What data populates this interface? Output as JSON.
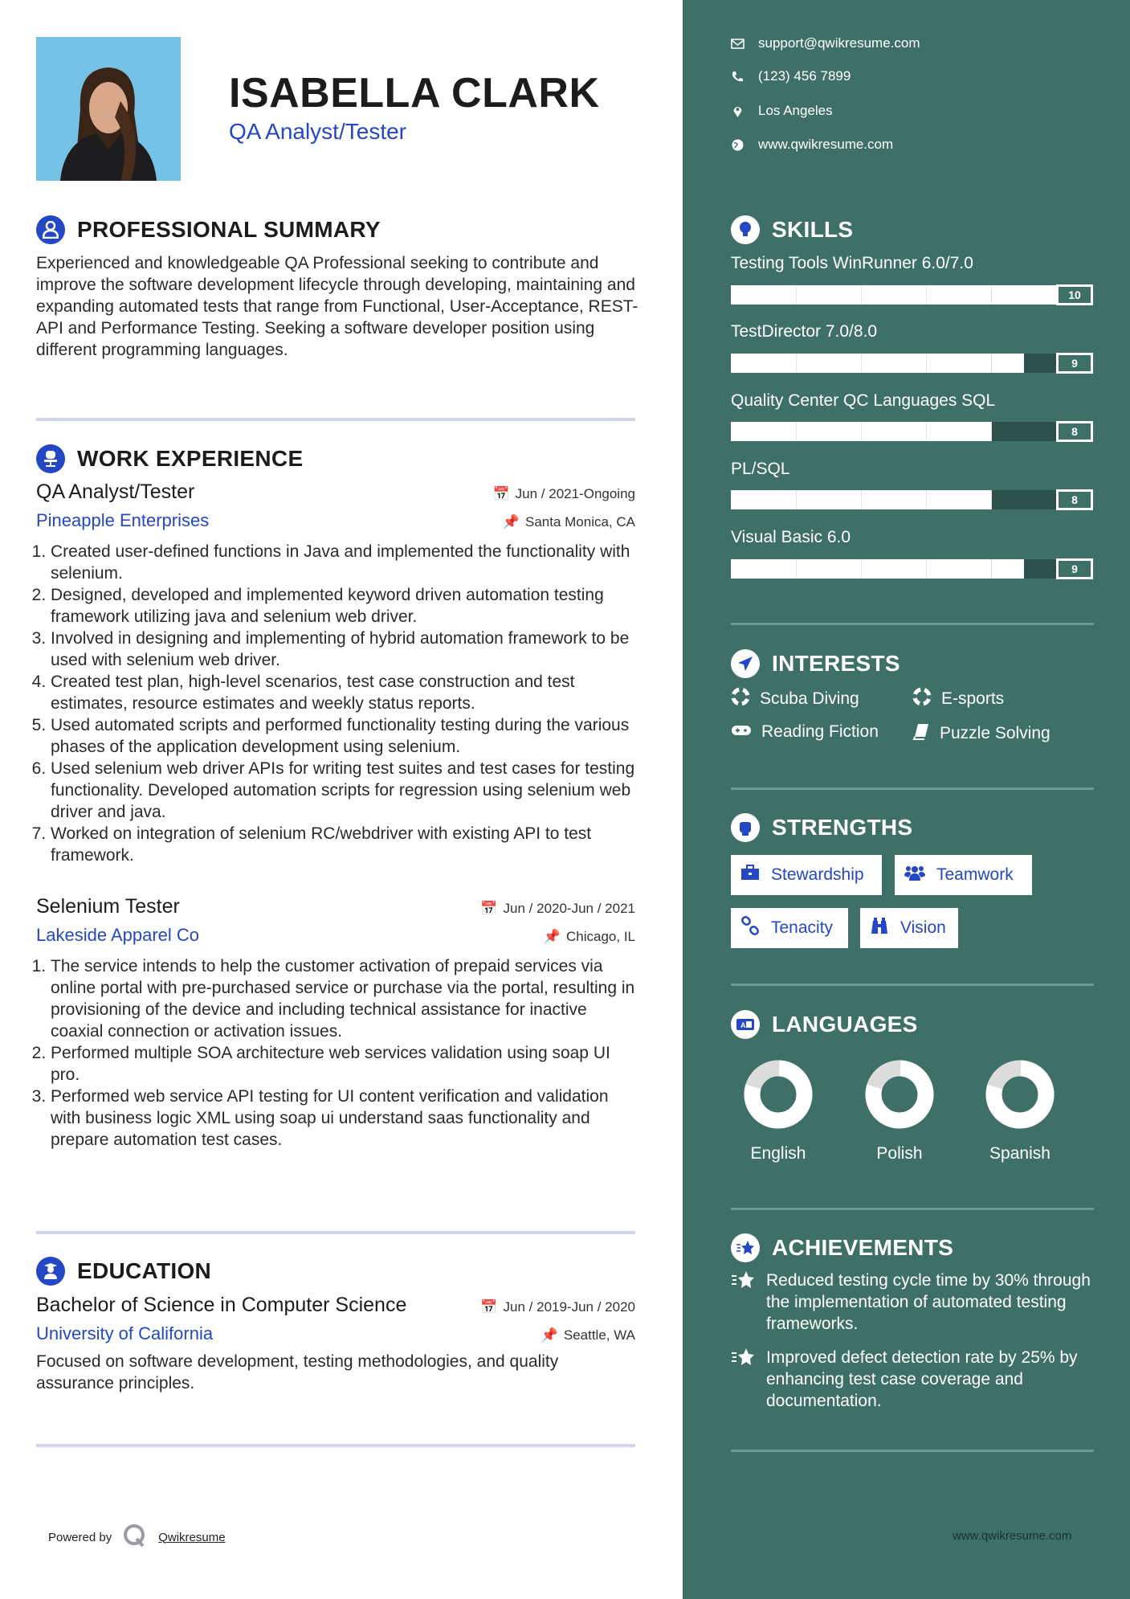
{
  "header": {
    "name": "ISABELLA CLARK",
    "title": "QA Analyst/Tester"
  },
  "summary": {
    "heading": "PROFESSIONAL SUMMARY",
    "text": "Experienced and knowledgeable QA Professional seeking to contribute and improve the software development lifecycle through developing, maintaining and expanding automated tests that range from Functional, User-Acceptance, REST-API and Performance Testing. Seeking a software developer position using different programming languages."
  },
  "experience": {
    "heading": "WORK EXPERIENCE",
    "jobs": [
      {
        "title": "QA Analyst/Tester",
        "company": "Pineapple Enterprises",
        "date": "Jun / 2021-Ongoing",
        "location": "Santa Monica, CA",
        "bullets": [
          "Created user-defined functions in Java and implemented the functionality with selenium.",
          "Designed, developed and implemented keyword driven automation testing framework utilizing java and selenium web driver.",
          "Involved in designing and implementing of hybrid automation framework to be used with selenium web driver.",
          "Created test plan, high-level scenarios, test case construction and test estimates, resource estimates and weekly status reports.",
          "Used automated scripts and performed functionality testing during the various phases of the application development using selenium.",
          "Used selenium web driver APIs for writing test suites and test cases for testing functionality. Developed automation scripts for regression using selenium web driver and java.",
          "Worked on integration of selenium RC/webdriver with existing API to test framework."
        ]
      },
      {
        "title": "Selenium Tester",
        "company": "Lakeside Apparel Co",
        "date": "Jun / 2020-Jun / 2021",
        "location": "Chicago, IL",
        "bullets": [
          "The service intends to help the customer activation of prepaid services via online portal with pre-purchased service or purchase via the portal, resulting in provisioning of the device and including technical assistance for inactive coaxial connection or activation issues.",
          "Performed multiple SOA architecture web services validation using soap UI pro.",
          "Performed web service API testing for UI content verification and validation with business logic XML using soap ui understand saas functionality and prepare automation test cases."
        ]
      }
    ]
  },
  "education": {
    "heading": "EDUCATION",
    "degree": "Bachelor of Science in Computer Science",
    "school": "University of California",
    "date": "Jun / 2019-Jun / 2020",
    "location": "Seattle, WA",
    "text": "Focused on software development, testing methodologies, and quality assurance principles."
  },
  "footer": {
    "powered_by": "Powered by",
    "brand": "Qwikresume",
    "site": "www.qwikresume.com"
  },
  "contact": {
    "email": "support@qwikresume.com",
    "phone": "(123) 456 7899",
    "location": "Los Angeles",
    "website": "www.qwikresume.com"
  },
  "skills": {
    "heading": "SKILLS",
    "max": 10,
    "items": [
      {
        "name": "Testing Tools WinRunner 6.0/7.0",
        "level": 10
      },
      {
        "name": "TestDirector 7.0/8.0",
        "level": 9
      },
      {
        "name": "Quality Center QC Languages SQL",
        "level": 8
      },
      {
        "name": "PL/SQL",
        "level": 8
      },
      {
        "name": "Visual Basic 6.0",
        "level": 9
      }
    ]
  },
  "interests": {
    "heading": "INTERESTS",
    "items": [
      {
        "label": "Scuba Diving",
        "icon": "life-ring-icon"
      },
      {
        "label": "E-sports",
        "icon": "life-ring-icon"
      },
      {
        "label": "Reading Fiction",
        "icon": "gamepad-icon"
      },
      {
        "label": "Puzzle Solving",
        "icon": "book-icon"
      }
    ]
  },
  "strengths": {
    "heading": "STRENGTHS",
    "items": [
      {
        "label": "Stewardship",
        "icon": "briefcase-icon"
      },
      {
        "label": "Teamwork",
        "icon": "users-icon"
      },
      {
        "label": "Tenacity",
        "icon": "link-icon"
      },
      {
        "label": "Vision",
        "icon": "binoculars-icon"
      }
    ]
  },
  "languages": {
    "heading": "LANGUAGES",
    "items": [
      {
        "name": "English",
        "level_percent": 80
      },
      {
        "name": "Polish",
        "level_percent": 80
      },
      {
        "name": "Spanish",
        "level_percent": 80
      }
    ]
  },
  "achievements": {
    "heading": "ACHIEVEMENTS",
    "items": [
      "Reduced testing cycle time by 30% through the implementation of automated testing frameworks.",
      "Improved defect detection rate by 25% by enhancing test case coverage and documentation."
    ]
  },
  "colors": {
    "accent": "#2447c5",
    "sidebar": "#3e7068",
    "bar_remainder": "#2c514b",
    "divider": "#d4d3ec"
  }
}
